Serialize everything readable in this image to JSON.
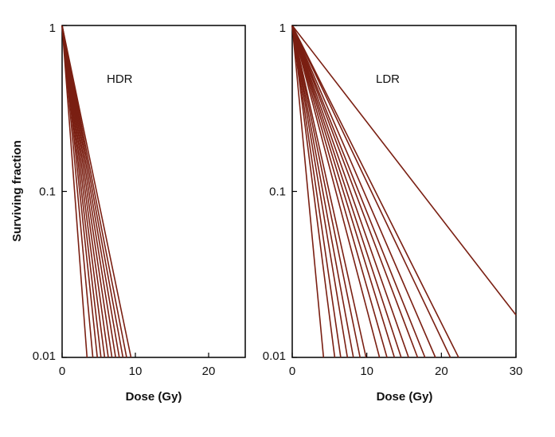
{
  "chart_data": [
    {
      "type": "line",
      "annotation": "HDR",
      "xlabel": "Dose (Gy)",
      "ylabel": "Surviving fraction",
      "xlim": [
        0,
        25
      ],
      "ylim": [
        0.01,
        1
      ],
      "yscale": "log",
      "x_ticks": [
        0,
        10,
        20
      ],
      "x_tick_labels": [
        "0",
        "10",
        "20"
      ],
      "y_ticks": [
        1,
        0.1,
        0.01
      ],
      "y_tick_labels": [
        "1",
        "0.1",
        "0.01"
      ],
      "line_color": "#7a1f12",
      "series": [
        {
          "x": [
            0,
            3.4
          ],
          "y": [
            1,
            0.01
          ]
        },
        {
          "x": [
            0,
            4.2
          ],
          "y": [
            1,
            0.01
          ]
        },
        {
          "x": [
            0,
            4.8
          ],
          "y": [
            1,
            0.01
          ]
        },
        {
          "x": [
            0,
            5.3
          ],
          "y": [
            1,
            0.01
          ]
        },
        {
          "x": [
            0,
            5.8
          ],
          "y": [
            1,
            0.01
          ]
        },
        {
          "x": [
            0,
            6.3
          ],
          "y": [
            1,
            0.01
          ]
        },
        {
          "x": [
            0,
            6.8
          ],
          "y": [
            1,
            0.01
          ]
        },
        {
          "x": [
            0,
            7.3
          ],
          "y": [
            1,
            0.01
          ]
        },
        {
          "x": [
            0,
            7.8
          ],
          "y": [
            1,
            0.01
          ]
        },
        {
          "x": [
            0,
            8.3
          ],
          "y": [
            1,
            0.01
          ]
        },
        {
          "x": [
            0,
            8.8
          ],
          "y": [
            1,
            0.01
          ]
        },
        {
          "x": [
            0,
            9.4
          ],
          "y": [
            1,
            0.01
          ]
        }
      ]
    },
    {
      "type": "line",
      "annotation": "LDR",
      "xlabel": "Dose (Gy)",
      "ylabel": "",
      "xlim": [
        0,
        30
      ],
      "ylim": [
        0.01,
        1
      ],
      "yscale": "log",
      "x_ticks": [
        0,
        10,
        20,
        30
      ],
      "x_tick_labels": [
        "0",
        "10",
        "20",
        "30"
      ],
      "y_ticks": [
        1,
        0.1,
        0.01
      ],
      "y_tick_labels": [
        "1",
        "0.1",
        "0.01"
      ],
      "line_color": "#7a1f12",
      "series": [
        {
          "x": [
            0,
            4.2
          ],
          "y": [
            1,
            0.01
          ]
        },
        {
          "x": [
            0,
            5.7
          ],
          "y": [
            1,
            0.01
          ]
        },
        {
          "x": [
            0,
            6.5
          ],
          "y": [
            1,
            0.01
          ]
        },
        {
          "x": [
            0,
            7.4
          ],
          "y": [
            1,
            0.01
          ]
        },
        {
          "x": [
            0,
            8.2
          ],
          "y": [
            1,
            0.01
          ]
        },
        {
          "x": [
            0,
            9.1
          ],
          "y": [
            1,
            0.01
          ]
        },
        {
          "x": [
            0,
            9.9
          ],
          "y": [
            1,
            0.01
          ]
        },
        {
          "x": [
            0,
            11.7
          ],
          "y": [
            1,
            0.01
          ]
        },
        {
          "x": [
            0,
            12.7
          ],
          "y": [
            1,
            0.01
          ]
        },
        {
          "x": [
            0,
            13.7
          ],
          "y": [
            1,
            0.01
          ]
        },
        {
          "x": [
            0,
            14.6
          ],
          "y": [
            1,
            0.01
          ]
        },
        {
          "x": [
            0,
            15.6
          ],
          "y": [
            1,
            0.01
          ]
        },
        {
          "x": [
            0,
            16.8
          ],
          "y": [
            1,
            0.01
          ]
        },
        {
          "x": [
            0,
            17.8
          ],
          "y": [
            1,
            0.01
          ]
        },
        {
          "x": [
            0,
            19.2
          ],
          "y": [
            1,
            0.01
          ]
        },
        {
          "x": [
            0,
            21.2
          ],
          "y": [
            1,
            0.01
          ]
        },
        {
          "x": [
            0,
            22.3
          ],
          "y": [
            1,
            0.01
          ]
        },
        {
          "x": [
            0,
            30
          ],
          "y": [
            1,
            0.018
          ]
        }
      ]
    }
  ]
}
